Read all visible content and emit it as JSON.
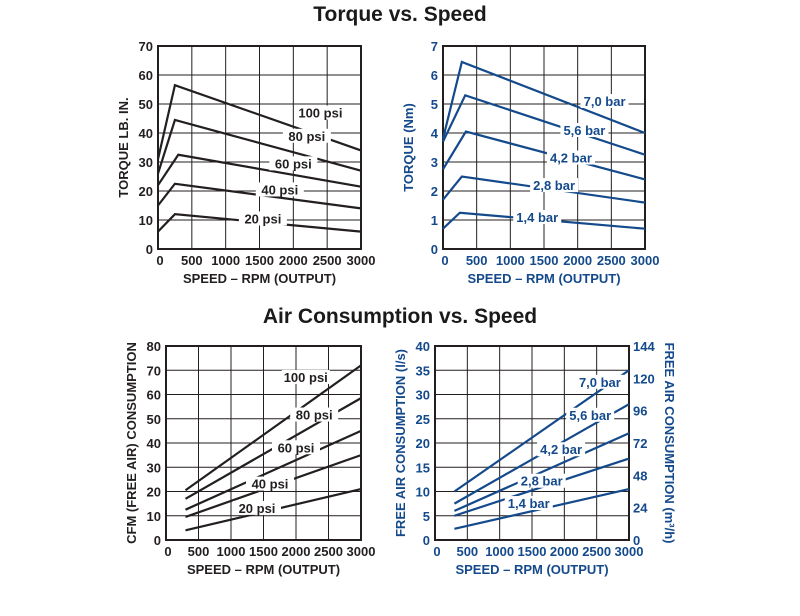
{
  "titles": {
    "torque": "Torque vs. Speed",
    "air": "Air Consumption vs. Speed"
  },
  "colors": {
    "imperial": "#231f20",
    "metric": "#144a8c"
  },
  "chart_data": [
    {
      "id": "torque-imperial",
      "type": "line",
      "title": "Torque vs. Speed",
      "xlabel": "SPEED – RPM (OUTPUT)",
      "ylabel": "TORQUE LB. IN.",
      "xlim": [
        0,
        3000
      ],
      "ylim": [
        0,
        70
      ],
      "xticks": [
        0,
        500,
        1000,
        1500,
        2000,
        2500,
        3000
      ],
      "yticks": [
        0,
        10,
        20,
        30,
        40,
        50,
        60,
        70
      ],
      "grid": true,
      "series": [
        {
          "name": "100 psi",
          "points": [
            [
              0,
              31
            ],
            [
              250,
              56.5
            ],
            [
              3000,
              34
            ]
          ],
          "label_at": [
            2400,
            46
          ]
        },
        {
          "name": "80 psi",
          "points": [
            [
              0,
              26
            ],
            [
              250,
              44.5
            ],
            [
              3000,
              27
            ]
          ],
          "label_at": [
            2200,
            38
          ]
        },
        {
          "name": "60 psi",
          "points": [
            [
              0,
              22
            ],
            [
              300,
              32.5
            ],
            [
              3000,
              21.5
            ]
          ],
          "label_at": [
            2000,
            28.5
          ]
        },
        {
          "name": "40 psi",
          "points": [
            [
              0,
              15
            ],
            [
              250,
              22.5
            ],
            [
              3000,
              14
            ]
          ],
          "label_at": [
            1800,
            19.5
          ]
        },
        {
          "name": "20 psi",
          "points": [
            [
              0,
              6
            ],
            [
              250,
              12
            ],
            [
              3000,
              6
            ]
          ],
          "label_at": [
            1550,
            9.5
          ]
        }
      ]
    },
    {
      "id": "torque-metric",
      "type": "line",
      "title": "Torque vs. Speed",
      "xlabel": "SPEED – RPM (OUTPUT)",
      "ylabel": "TORQUE (Nm)",
      "xlim": [
        0,
        3000
      ],
      "ylim": [
        0,
        7
      ],
      "xticks": [
        0,
        500,
        1000,
        1500,
        2000,
        2500,
        3000
      ],
      "yticks": [
        0,
        1,
        2,
        3,
        4,
        5,
        6,
        7
      ],
      "grid": true,
      "series": [
        {
          "name": "7,0 bar",
          "points": [
            [
              0,
              3.8
            ],
            [
              280,
              6.45
            ],
            [
              3000,
              4.0
            ]
          ],
          "label_at": [
            2400,
            5.0
          ]
        },
        {
          "name": "5,6 bar",
          "points": [
            [
              0,
              3.7
            ],
            [
              330,
              5.3
            ],
            [
              3000,
              3.25
            ]
          ],
          "label_at": [
            2100,
            4.0
          ]
        },
        {
          "name": "4,2 bar",
          "points": [
            [
              0,
              2.75
            ],
            [
              340,
              4.05
            ],
            [
              3000,
              2.4
            ]
          ],
          "label_at": [
            1900,
            3.05
          ]
        },
        {
          "name": "2,8 bar",
          "points": [
            [
              0,
              1.7
            ],
            [
              280,
              2.5
            ],
            [
              3000,
              1.6
            ]
          ],
          "label_at": [
            1650,
            2.1
          ]
        },
        {
          "name": "1,4 bar",
          "points": [
            [
              0,
              0.7
            ],
            [
              250,
              1.25
            ],
            [
              3000,
              0.7
            ]
          ],
          "label_at": [
            1400,
            1.0
          ]
        }
      ]
    },
    {
      "id": "air-imperial",
      "type": "line",
      "title": "Air Consumption vs. Speed",
      "xlabel": "SPEED – RPM (OUTPUT)",
      "ylabel": "CFM (FREE AIR) CONSUMPTION",
      "xlim": [
        0,
        3000
      ],
      "ylim": [
        0,
        80
      ],
      "xticks": [
        0,
        500,
        1000,
        1500,
        2000,
        2500,
        3000
      ],
      "yticks": [
        0,
        10,
        20,
        30,
        40,
        50,
        60,
        70,
        80
      ],
      "grid": true,
      "series": [
        {
          "name": "100 psi",
          "points": [
            [
              300,
              20.5
            ],
            [
              3000,
              72
            ]
          ],
          "label_at": [
            2150,
            66
          ]
        },
        {
          "name": "80 psi",
          "points": [
            [
              300,
              17
            ],
            [
              3000,
              58.5
            ]
          ],
          "label_at": [
            2280,
            50.5
          ]
        },
        {
          "name": "60 psi",
          "points": [
            [
              300,
              12.5
            ],
            [
              3000,
              45
            ]
          ],
          "label_at": [
            2000,
            37
          ]
        },
        {
          "name": "40 psi",
          "points": [
            [
              300,
              9.5
            ],
            [
              3000,
              35
            ]
          ],
          "label_at": [
            1600,
            22
          ]
        },
        {
          "name": "20 psi",
          "points": [
            [
              300,
              4
            ],
            [
              3000,
              21
            ]
          ],
          "label_at": [
            1400,
            12
          ]
        }
      ]
    },
    {
      "id": "air-metric",
      "type": "line",
      "title": "Air Consumption vs. Speed",
      "xlabel": "SPEED – RPM (OUTPUT)",
      "ylabel": "FREE AIR CONSUMPTION (l/s)",
      "y2label": "FREE AIR CONSUMPTION (m³/h)",
      "xlim": [
        0,
        3000
      ],
      "ylim": [
        0,
        40
      ],
      "y2lim": [
        0,
        144
      ],
      "xticks": [
        0,
        500,
        1000,
        1500,
        2000,
        2500,
        3000
      ],
      "yticks": [
        0,
        5,
        10,
        15,
        20,
        25,
        30,
        35,
        40
      ],
      "y2ticks": [
        0,
        24,
        48,
        72,
        96,
        120,
        144
      ],
      "grid": true,
      "series": [
        {
          "name": "7,0 bar",
          "points": [
            [
              300,
              10
            ],
            [
              3000,
              35
            ]
          ],
          "label_at": [
            2550,
            32
          ]
        },
        {
          "name": "5,6 bar",
          "points": [
            [
              300,
              7.5
            ],
            [
              3000,
              28
            ]
          ],
          "label_at": [
            2400,
            25.2
          ]
        },
        {
          "name": "4,2 bar",
          "points": [
            [
              300,
              6
            ],
            [
              3000,
              22
            ]
          ],
          "label_at": [
            1950,
            18.1
          ]
        },
        {
          "name": "2,8 bar",
          "points": [
            [
              300,
              5
            ],
            [
              3000,
              16.8
            ]
          ],
          "label_at": [
            1650,
            11.6
          ]
        },
        {
          "name": "1,4 bar",
          "points": [
            [
              300,
              2.3
            ],
            [
              3000,
              10.5
            ]
          ],
          "label_at": [
            1450,
            7.0
          ]
        }
      ]
    }
  ]
}
